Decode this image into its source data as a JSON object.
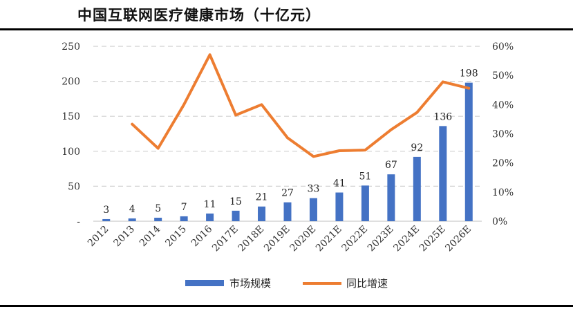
{
  "title": "中国互联网医疗健康市场（十亿元）",
  "chart_data": {
    "type": "bar",
    "categories": [
      "2012",
      "2013",
      "2014",
      "2015",
      "2016",
      "2017E",
      "2018E",
      "2019E",
      "2020E",
      "2021E",
      "2022E",
      "2023E",
      "2024E",
      "2025E",
      "2026E"
    ],
    "series": [
      {
        "name": "市场规模",
        "type": "bar",
        "axis": "left",
        "color": "#4472C4",
        "values": [
          3,
          4,
          5,
          7,
          11,
          15,
          21,
          27,
          33,
          41,
          51,
          67,
          92,
          136,
          198
        ]
      },
      {
        "name": "同比增速",
        "type": "line",
        "axis": "right",
        "color": "#ED7D31",
        "values": [
          null,
          0.333,
          0.25,
          0.4,
          0.571,
          0.364,
          0.4,
          0.286,
          0.222,
          0.242,
          0.244,
          0.314,
          0.373,
          0.478,
          0.456
        ]
      }
    ],
    "y_left": {
      "ylim": [
        0,
        250
      ],
      "ticks": [
        0,
        50,
        100,
        150,
        200,
        250
      ],
      "tick_labels": [
        "-",
        "50",
        "100",
        "150",
        "200",
        "250"
      ]
    },
    "y_right": {
      "ylim": [
        0,
        0.6
      ],
      "ticks": [
        0,
        0.1,
        0.2,
        0.3,
        0.4,
        0.5,
        0.6
      ],
      "tick_labels": [
        "0%",
        "10%",
        "20%",
        "30%",
        "40%",
        "50%",
        "60%"
      ]
    },
    "data_labels": [
      "3",
      "4",
      "5",
      "7",
      "11",
      "15",
      "21",
      "27",
      "33",
      "41",
      "51",
      "67",
      "92",
      "136",
      "198"
    ],
    "grid": true,
    "legend_position": "bottom"
  }
}
